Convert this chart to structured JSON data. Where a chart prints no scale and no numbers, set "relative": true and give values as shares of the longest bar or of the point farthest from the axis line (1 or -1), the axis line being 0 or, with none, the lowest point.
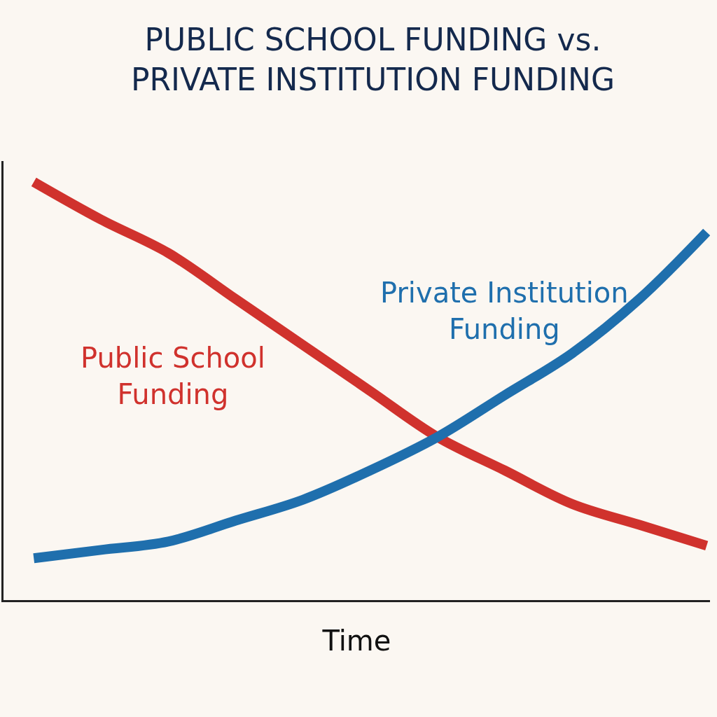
{
  "chart_data": {
    "type": "line",
    "title": "PUBLIC SCHOOL FUNDING vs.\nPRIVATE INSTITUTION FUNDING",
    "xlabel": "Time",
    "relative": true,
    "categories": [
      null,
      null,
      null,
      null,
      null,
      null,
      null,
      null,
      null,
      null,
      null
    ],
    "series": [
      {
        "name": "Public School\nFunding",
        "color": "#d0322d",
        "values": [
          1,
          0.91,
          0.83,
          0.72,
          0.61,
          0.5,
          0.39,
          0.31,
          0.23,
          0.18,
          0.13
        ]
      },
      {
        "name": "Private Institution\nFunding",
        "color": "#1f6fad",
        "values": [
          0.1,
          0.12,
          0.14,
          0.19,
          0.24,
          0.31,
          0.39,
          0.49,
          0.59,
          0.72,
          0.88
        ]
      }
    ],
    "grid": false,
    "legend": false,
    "marker": "none",
    "line_style": "solid"
  }
}
